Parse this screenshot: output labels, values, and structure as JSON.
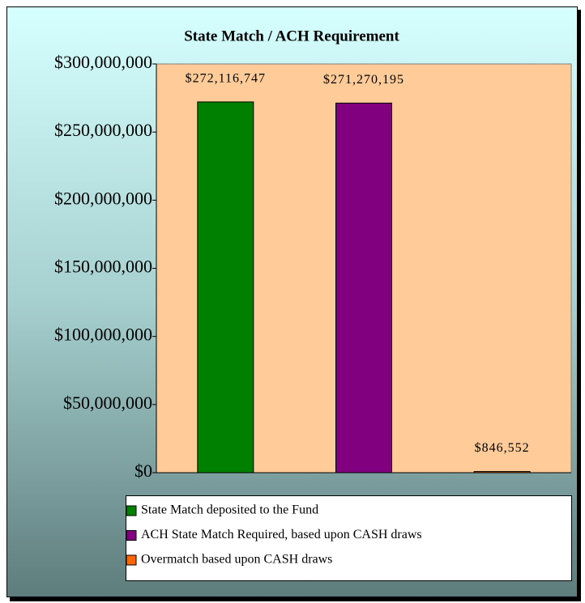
{
  "chart_data": {
    "type": "bar",
    "title": "State Match / ACH Requirement",
    "series": [
      {
        "name": "State Match deposited to the Fund",
        "color": "#008000",
        "values": [
          272116747
        ],
        "value_labels": [
          "$272,116,747"
        ]
      },
      {
        "name": "ACH State Match Required, based upon CASH draws",
        "color": "#800080",
        "values": [
          271270195
        ],
        "value_labels": [
          "$271,270,195"
        ]
      },
      {
        "name": "Overmatch based upon CASH draws",
        "color": "#FF6600",
        "values": [
          846552
        ],
        "value_labels": [
          "$846,552"
        ]
      }
    ],
    "ylim": [
      0,
      300000000
    ],
    "yticks": [
      {
        "value": 0,
        "label": "$0"
      },
      {
        "value": 50000000,
        "label": "$50,000,000"
      },
      {
        "value": 100000000,
        "label": "$100,000,000"
      },
      {
        "value": 150000000,
        "label": "$150,000,000"
      },
      {
        "value": 200000000,
        "label": "$200,000,000"
      },
      {
        "value": 250000000,
        "label": "$250,000,000"
      },
      {
        "value": 300000000,
        "label": "$300,000,000"
      }
    ],
    "grid": false
  }
}
